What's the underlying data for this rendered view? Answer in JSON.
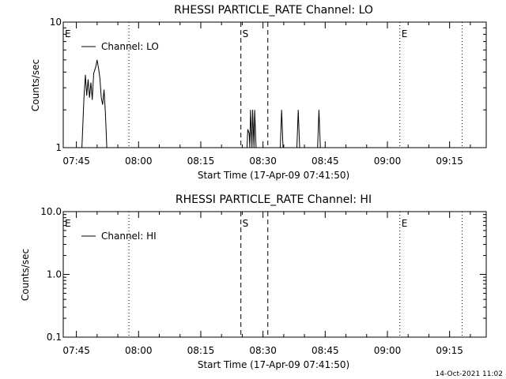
{
  "footer_timestamp": "14-Oct-2021 11:02",
  "chart_data": [
    {
      "type": "line",
      "title": "RHESSI PARTICLE_RATE Channel: LO",
      "xlabel": "Start Time (17-Apr-09 07:41:50)",
      "ylabel": "Counts/sec",
      "yscale": "log",
      "ylim": [
        1,
        10
      ],
      "xlim": [
        "07:41:50",
        "09:23:50"
      ],
      "x_tick_labels": [
        "07:45",
        "08:00",
        "08:15",
        "08:30",
        "08:45",
        "09:00",
        "09:15"
      ],
      "y_tick_labels": [
        "1",
        "10"
      ],
      "legend": {
        "entries": [
          "Channel: LO"
        ],
        "placement": "top-left"
      },
      "event_markers": [
        {
          "label": "E",
          "time": "07:41:50",
          "style": "none"
        },
        {
          "label": "",
          "time": "07:57:40",
          "style": "dotted"
        },
        {
          "label": "S",
          "time": "08:24:40",
          "style": "dashed"
        },
        {
          "label": "",
          "time": "08:31:10",
          "style": "dashed"
        },
        {
          "label": "E",
          "time": "09:03:00",
          "style": "dotted"
        },
        {
          "label": "",
          "time": "09:18:00",
          "style": "dotted"
        }
      ],
      "series": [
        {
          "name": "Channel: LO",
          "points": [
            [
              "07:46:20",
              1
            ],
            [
              "07:46:50",
              2.5
            ],
            [
              "07:47:10",
              3.8
            ],
            [
              "07:47:30",
              2.6
            ],
            [
              "07:47:50",
              3.5
            ],
            [
              "07:48:10",
              2.5
            ],
            [
              "07:48:30",
              3.3
            ],
            [
              "07:48:50",
              2.4
            ],
            [
              "07:49:10",
              3.9
            ],
            [
              "07:49:40",
              4.4
            ],
            [
              "07:50:00",
              5.0
            ],
            [
              "07:50:20",
              4.3
            ],
            [
              "07:50:40",
              3.6
            ],
            [
              "07:51:00",
              2.5
            ],
            [
              "07:51:20",
              2.2
            ],
            [
              "07:51:40",
              2.9
            ],
            [
              "07:52:00",
              1.9
            ],
            [
              "07:52:20",
              1
            ],
            [
              "08:26:10",
              1
            ],
            [
              "08:26:20",
              1.4
            ],
            [
              "08:26:40",
              1.3
            ],
            [
              "08:26:50",
              1
            ],
            [
              "08:27:00",
              2
            ],
            [
              "08:27:20",
              1
            ],
            [
              "08:27:30",
              2
            ],
            [
              "08:27:50",
              1
            ],
            [
              "08:28:00",
              2
            ],
            [
              "08:28:20",
              1
            ],
            [
              "08:34:10",
              1
            ],
            [
              "08:34:30",
              2
            ],
            [
              "08:34:50",
              1
            ],
            [
              "08:38:10",
              1
            ],
            [
              "08:38:30",
              2
            ],
            [
              "08:38:50",
              1
            ],
            [
              "08:43:10",
              1
            ],
            [
              "08:43:30",
              2
            ],
            [
              "08:43:50",
              1
            ]
          ]
        }
      ]
    },
    {
      "type": "line",
      "title": "RHESSI PARTICLE_RATE Channel: HI",
      "xlabel": "Start Time (17-Apr-09 07:41:50)",
      "ylabel": "Counts/sec",
      "yscale": "log",
      "ylim": [
        0.1,
        10
      ],
      "xlim": [
        "07:41:50",
        "09:23:50"
      ],
      "x_tick_labels": [
        "07:45",
        "08:00",
        "08:15",
        "08:30",
        "08:45",
        "09:00",
        "09:15"
      ],
      "y_tick_labels": [
        "0.1",
        "1.0",
        "10.0"
      ],
      "legend": {
        "entries": [
          "Channel: HI"
        ],
        "placement": "top-left"
      },
      "event_markers": [
        {
          "label": "E",
          "time": "07:41:50",
          "style": "none"
        },
        {
          "label": "",
          "time": "07:57:40",
          "style": "dotted"
        },
        {
          "label": "S",
          "time": "08:24:40",
          "style": "dashed"
        },
        {
          "label": "",
          "time": "08:31:10",
          "style": "dashed"
        },
        {
          "label": "E",
          "time": "09:03:00",
          "style": "dotted"
        },
        {
          "label": "",
          "time": "09:18:00",
          "style": "dotted"
        }
      ],
      "series": [
        {
          "name": "Channel: HI",
          "points": []
        }
      ]
    }
  ]
}
